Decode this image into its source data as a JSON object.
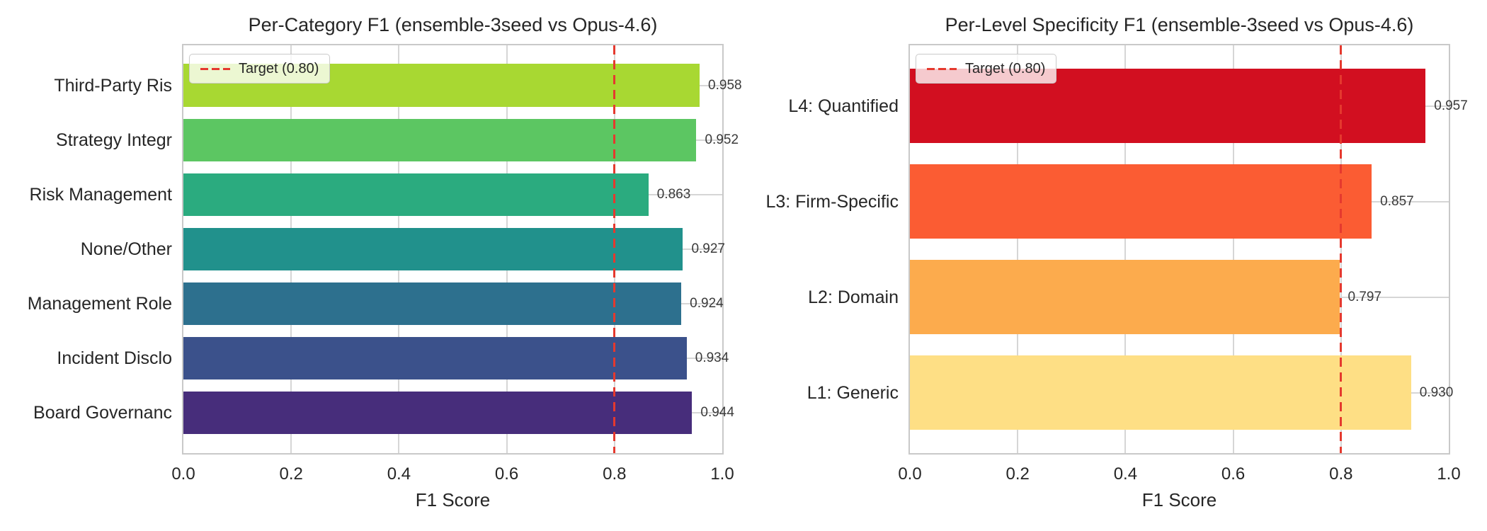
{
  "figure": {
    "background_color": "#ffffff",
    "grid_color": "#d6d6d6",
    "spine_color": "#c9c9c9",
    "text_color": "#262626"
  },
  "chart_data": [
    {
      "type": "bar",
      "orientation": "horizontal",
      "title": "Per-Category F1 (ensemble-3seed vs Opus-4.6)",
      "xlabel": "F1 Score",
      "xlim": [
        0.0,
        1.0
      ],
      "xticks": [
        0.0,
        0.2,
        0.4,
        0.6,
        0.8,
        1.0
      ],
      "xtick_labels": [
        "0.0",
        "0.2",
        "0.4",
        "0.6",
        "0.8",
        "1.0"
      ],
      "grid": true,
      "legend_position": "upper left",
      "categories": [
        "Third-Party Ris",
        "Strategy Integr",
        "Risk Management",
        "None/Other",
        "Management Role",
        "Incident Disclo",
        "Board Governanc"
      ],
      "values": [
        0.958,
        0.952,
        0.863,
        0.927,
        0.924,
        0.934,
        0.944
      ],
      "value_labels": [
        "0.958",
        "0.952",
        "0.863",
        "0.927",
        "0.924",
        "0.934",
        "0.944"
      ],
      "bar_colors": [
        "#a8d832",
        "#5cc662",
        "#2bab7f",
        "#21918c",
        "#2d708e",
        "#3b518b",
        "#472d7b"
      ],
      "target_line": {
        "value": 0.8,
        "label": "Target (0.80)",
        "color": "#e5392e",
        "style": "dashed"
      }
    },
    {
      "type": "bar",
      "orientation": "horizontal",
      "title": "Per-Level Specificity F1 (ensemble-3seed vs Opus-4.6)",
      "xlabel": "F1 Score",
      "xlim": [
        0.0,
        1.0
      ],
      "xticks": [
        0.0,
        0.2,
        0.4,
        0.6,
        0.8,
        1.0
      ],
      "xtick_labels": [
        "0.0",
        "0.2",
        "0.4",
        "0.6",
        "0.8",
        "1.0"
      ],
      "grid": true,
      "legend_position": "upper left",
      "categories": [
        "L4: Quantified",
        "L3: Firm-Specific",
        "L2: Domain",
        "L1: Generic"
      ],
      "values": [
        0.957,
        0.857,
        0.797,
        0.93
      ],
      "value_labels": [
        "0.957",
        "0.857",
        "0.797",
        "0.930"
      ],
      "bar_colors": [
        "#d20f20",
        "#fb5c33",
        "#fcab4d",
        "#fedf85"
      ],
      "target_line": {
        "value": 0.8,
        "label": "Target (0.80)",
        "color": "#e5392e",
        "style": "dashed"
      }
    }
  ]
}
